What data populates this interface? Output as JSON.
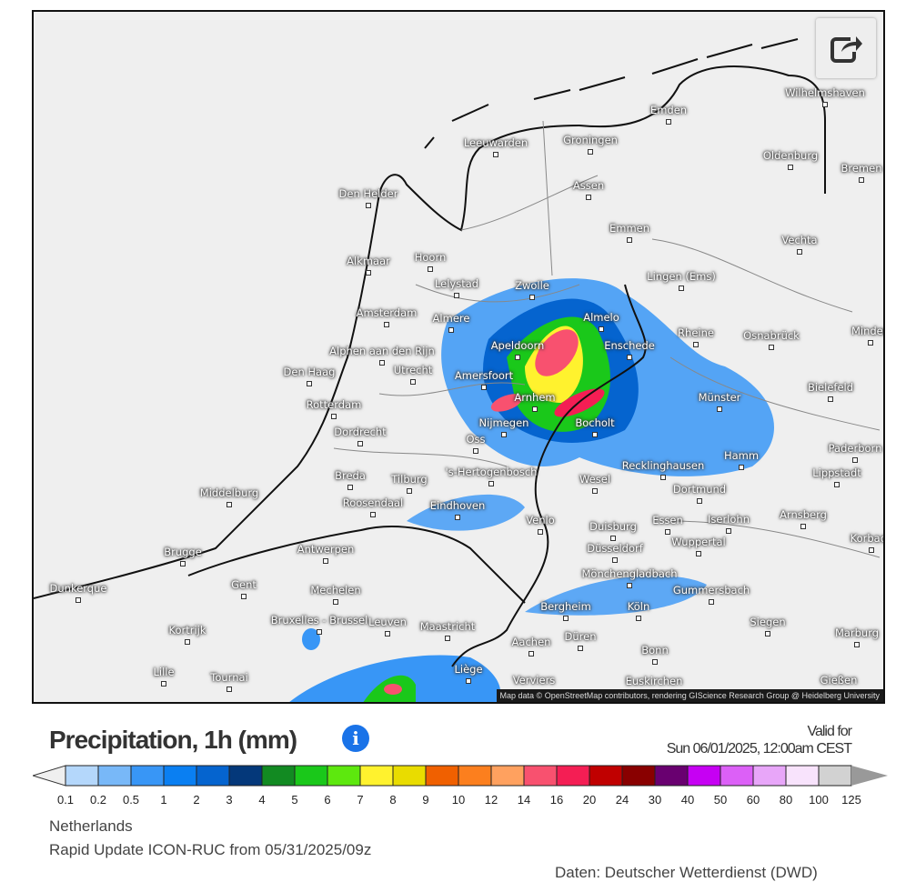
{
  "map": {
    "attribution": "Map data © OpenStreetMap contributors, rendering GIScience Research Group @ Heidelberg University",
    "share_icon": "share-icon",
    "cities": [
      "Leeuwarden",
      "Groningen",
      "Emden",
      "Wilhelmshaven",
      "Bremen",
      "Oldenburg",
      "Den Helder",
      "Assen",
      "Emmen",
      "Vechta",
      "Alkmaar",
      "Hoorn",
      "Lelystad",
      "Zwolle",
      "Lingen (Ems)",
      "Amsterdam",
      "Almere",
      "Almelo",
      "Rheine",
      "Osnabrück",
      "Minden",
      "Alphen aan den Rijn",
      "Apeldoorn",
      "Enschede",
      "Den Haag",
      "Utrecht",
      "Amersfoort",
      "Arnhem",
      "Münster",
      "Bielefeld",
      "Rotterdam",
      "Dordrecht",
      "Nijmegen",
      "Bocholt",
      "Oss",
      "Hamm",
      "Paderborn",
      "Breda",
      "Tilburg",
      "'s-Hertogenbosch",
      "Wesel",
      "Recklinghausen",
      "Lippstadt",
      "Middelburg",
      "Roosendaal",
      "Eindhoven",
      "Dortmund",
      "Venlo",
      "Duisburg",
      "Essen",
      "Iserlohn",
      "Arnsberg",
      "Brugge",
      "Antwerpen",
      "Düsseldorf",
      "Wuppertal",
      "Korbach",
      "Dunkerque",
      "Gent",
      "Mechelen",
      "Mönchengladbach",
      "Gummersbach",
      "Bruxelles - Brussel",
      "Bergheim",
      "Köln",
      "Kortrijk",
      "Leuven",
      "Maastricht",
      "Siegen",
      "Aachen",
      "Düren",
      "Marburg",
      "Bonn",
      "Lille",
      "Tournai",
      "Liège",
      "Verviers",
      "Euskirchen",
      "Gießen"
    ]
  },
  "legend": {
    "title": "Precipitation, 1h (mm)",
    "info_icon": "i",
    "valid_label": "Valid for",
    "valid_time": "Sun 06/01/2025, 12:00am CEST",
    "ticks": [
      "0.1",
      "0.2",
      "0.5",
      "1",
      "2",
      "3",
      "4",
      "5",
      "6",
      "7",
      "8",
      "9",
      "10",
      "12",
      "14",
      "16",
      "20",
      "24",
      "30",
      "40",
      "50",
      "60",
      "80",
      "100",
      "125"
    ],
    "colors": [
      "#b4d7fb",
      "#78b8f8",
      "#3896f6",
      "#0a7ff2",
      "#0564cf",
      "#04387a",
      "#128a22",
      "#1ac81a",
      "#5de80e",
      "#fff22e",
      "#e9dc00",
      "#f06000",
      "#fc7f1e",
      "#ffa15f",
      "#f8516f",
      "#f41e54",
      "#c00000",
      "#890000",
      "#690070",
      "#c600f3",
      "#dc60f7",
      "#e8a6f9",
      "#f8e3fc",
      "#d2d2d2"
    ],
    "low_color": "#efefef",
    "high_color": "#999999"
  },
  "info": {
    "region": "Netherlands",
    "model": "Rapid Update ICON-RUC from 05/31/2025/09z",
    "source": "Daten: Deutscher Wetterdienst (DWD)"
  }
}
